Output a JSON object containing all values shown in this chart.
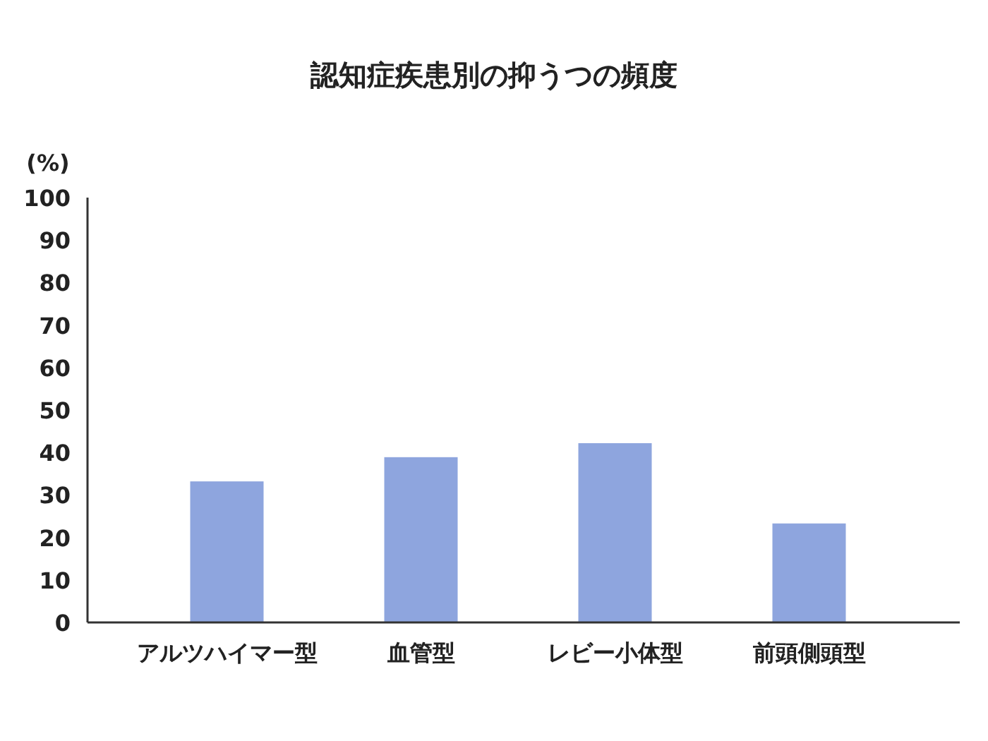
{
  "chart_data": {
    "type": "bar",
    "title": "認知症疾患別の抑うつの頻度",
    "ylabel": "(%)",
    "categories": [
      "アルツハイマー型",
      "血管型",
      "レビー小体型",
      "前頭側頭型"
    ],
    "values": [
      33.2,
      38.9,
      42.2,
      23.3
    ],
    "color": "#8ea5de",
    "ylim": [
      0,
      100
    ],
    "yticks": [
      0,
      10,
      20,
      30,
      40,
      50,
      60,
      70,
      80,
      90,
      100
    ]
  }
}
